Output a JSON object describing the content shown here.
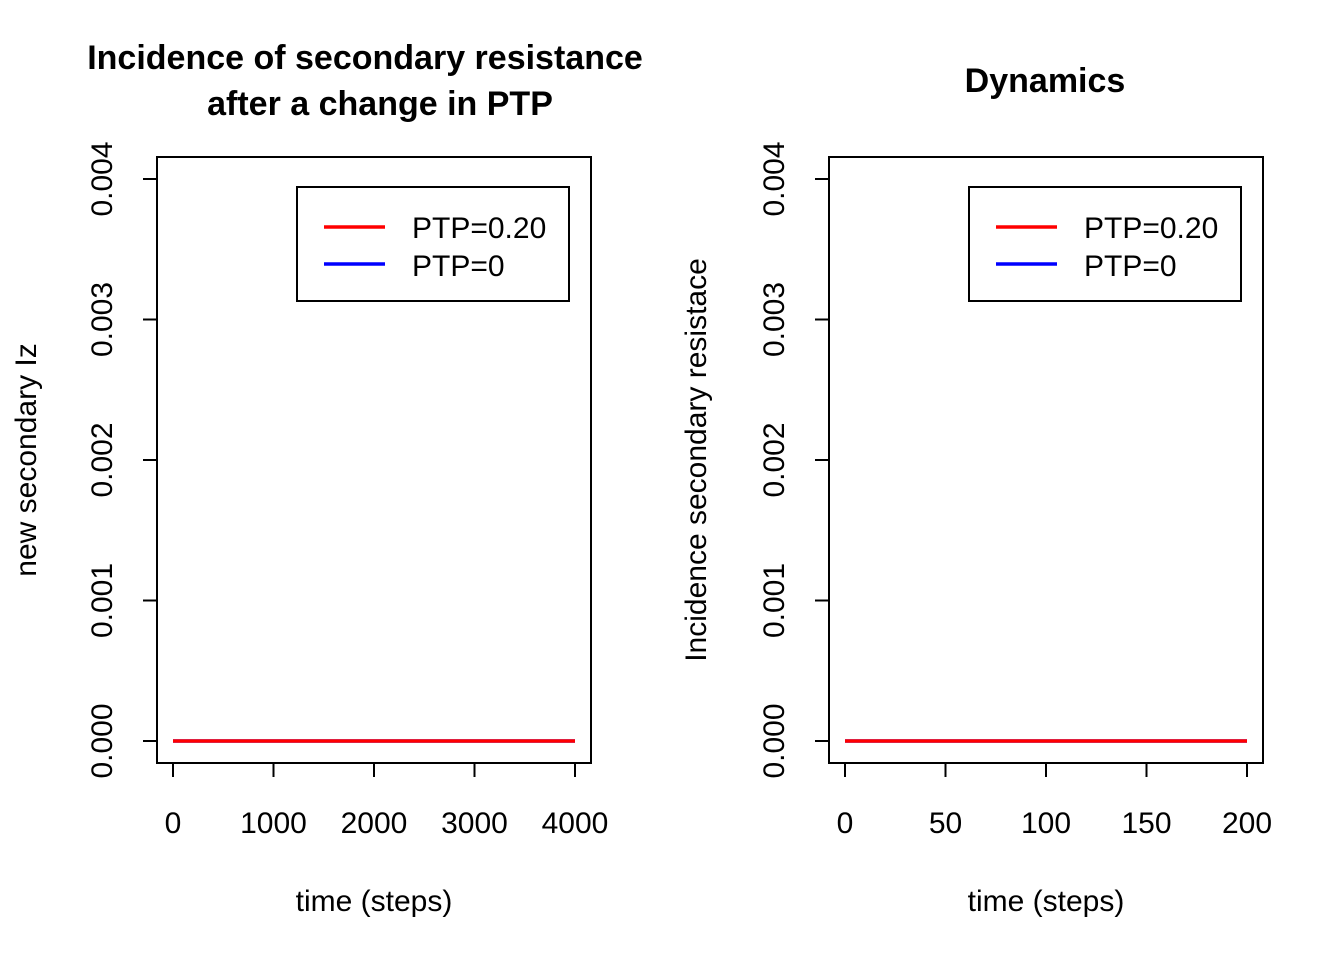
{
  "chart_data": [
    {
      "type": "line",
      "title_lines": [
        "Incidence of secondary resistance",
        "after a change in PTP"
      ],
      "xlabel": "time (steps)",
      "ylabel": "new secondary Iz",
      "xlim": [
        0,
        4000
      ],
      "ylim": [
        0,
        0.004
      ],
      "x_ticks": [
        0,
        1000,
        2000,
        3000,
        4000
      ],
      "x_tick_labels": [
        "0",
        "1000",
        "2000",
        "3000",
        "4000"
      ],
      "y_ticks": [
        0,
        0.001,
        0.002,
        0.003,
        0.004
      ],
      "y_tick_labels": [
        "0.000",
        "0.001",
        "0.002",
        "0.003",
        "0.004"
      ],
      "grid": false,
      "legend_position": "top-right",
      "series": [
        {
          "name": "PTP=0.20",
          "color": "#ff0000",
          "x": [
            0,
            4000
          ],
          "y": [
            0,
            0
          ]
        },
        {
          "name": "PTP=0",
          "color": "#0000ff",
          "x": [
            0,
            4000
          ],
          "y": [
            0,
            0
          ]
        }
      ]
    },
    {
      "type": "line",
      "title_lines": [
        "Dynamics"
      ],
      "xlabel": "time (steps)",
      "ylabel": "Incidence secondary resistace",
      "xlim": [
        0,
        200
      ],
      "ylim": [
        0,
        0.004
      ],
      "x_ticks": [
        0,
        50,
        100,
        150,
        200
      ],
      "x_tick_labels": [
        "0",
        "50",
        "100",
        "150",
        "200"
      ],
      "y_ticks": [
        0,
        0.001,
        0.002,
        0.003,
        0.004
      ],
      "y_tick_labels": [
        "0.000",
        "0.001",
        "0.002",
        "0.003",
        "0.004"
      ],
      "grid": false,
      "legend_position": "top-right",
      "series": [
        {
          "name": "PTP=0.20",
          "color": "#ff0000",
          "x": [
            0,
            200
          ],
          "y": [
            0,
            0
          ]
        },
        {
          "name": "PTP=0",
          "color": "#0000ff",
          "x": [
            0,
            200
          ],
          "y": [
            0,
            0
          ]
        }
      ]
    }
  ]
}
